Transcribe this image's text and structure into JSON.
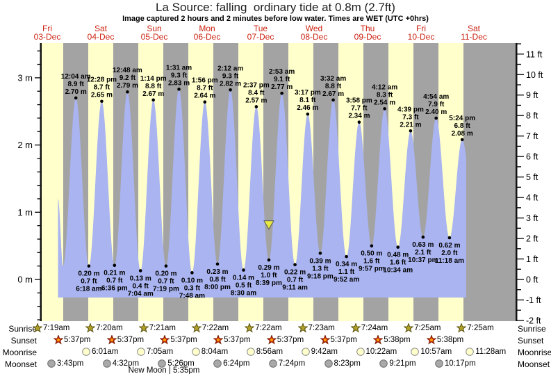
{
  "title": "La Source: falling  ordinary tide at 0.8m (2.7ft)",
  "subtitle": "Image captured 2 hours and 2 minutes before low water. Times are WET (UTC +0hrs)",
  "days": [
    {
      "dow": "Fri",
      "date": "03-Dec"
    },
    {
      "dow": "Sat",
      "date": "04-Dec"
    },
    {
      "dow": "Sun",
      "date": "05-Dec"
    },
    {
      "dow": "Mon",
      "date": "06-Dec"
    },
    {
      "dow": "Tue",
      "date": "07-Dec"
    },
    {
      "dow": "Wed",
      "date": "08-Dec"
    },
    {
      "dow": "Thu",
      "date": "09-Dec"
    },
    {
      "dow": "Fri",
      "date": "10-Dec"
    },
    {
      "dow": "Sat",
      "date": "11-Dec"
    }
  ],
  "chart_data": {
    "type": "area",
    "title": "La Source tide curve",
    "x_categories": [
      "Fri 03-Dec",
      "Sat 04-Dec",
      "Sun 05-Dec",
      "Mon 06-Dec",
      "Tue 07-Dec",
      "Wed 08-Dec",
      "Thu 09-Dec",
      "Fri 10-Dec",
      "Sat 11-Dec"
    ],
    "y_axis_left": {
      "unit": "m",
      "ticks": [
        3,
        2,
        1,
        0
      ],
      "range": [
        -0.62,
        3.52
      ]
    },
    "y_axis_right": {
      "unit": "ft",
      "ticks": [
        11,
        10,
        9,
        8,
        7,
        6,
        5,
        4,
        3,
        2,
        1,
        0,
        -1,
        -2
      ]
    },
    "bands": "yellow = daylight (06:00-18:00), gray = night",
    "grid": false,
    "extremes": [
      {
        "day": 0,
        "kind": "high",
        "time": "12:04 am",
        "ft": "8.9 ft",
        "m": "2.70 m"
      },
      {
        "day": 0,
        "kind": "low",
        "time": "6:18 am",
        "ft": "0.7 ft",
        "m": "0.20 m"
      },
      {
        "day": 0,
        "kind": "high",
        "time": "12:28 pm",
        "ft": "8.7 ft",
        "m": "2.65 m"
      },
      {
        "day": 0,
        "kind": "low",
        "time": "6:36 pm",
        "ft": "0.7 ft",
        "m": "0.21 m"
      },
      {
        "day": 1,
        "kind": "high",
        "time": "12:48 am",
        "ft": "9.2 ft",
        "m": "2.79 m"
      },
      {
        "day": 1,
        "kind": "low",
        "time": "7:04 am",
        "ft": "0.4 ft",
        "m": "0.13 m"
      },
      {
        "day": 1,
        "kind": "high",
        "time": "1:14 pm",
        "ft": "8.8 ft",
        "m": "2.67 m"
      },
      {
        "day": 1,
        "kind": "low",
        "time": "7:19 pm",
        "ft": "0.7 ft",
        "m": "0.20 m"
      },
      {
        "day": 2,
        "kind": "high",
        "time": "1:31 am",
        "ft": "9.3 ft",
        "m": "2.83 m"
      },
      {
        "day": 2,
        "kind": "low",
        "time": "7:48 am",
        "ft": "0.3 ft",
        "m": "0.10 m"
      },
      {
        "day": 2,
        "kind": "high",
        "time": "1:56 pm",
        "ft": "8.7 ft",
        "m": "2.64 m"
      },
      {
        "day": 2,
        "kind": "low",
        "time": "8:00 pm",
        "ft": "0.8 ft",
        "m": "0.23 m"
      },
      {
        "day": 3,
        "kind": "high",
        "time": "2:12 am",
        "ft": "9.3 ft",
        "m": "2.82 m"
      },
      {
        "day": 3,
        "kind": "low",
        "time": "8:30 am",
        "ft": "0.5 ft",
        "m": "0.14 m"
      },
      {
        "day": 3,
        "kind": "high",
        "time": "2:37 pm",
        "ft": "8.4 ft",
        "m": "2.57 m"
      },
      {
        "day": 3,
        "kind": "low",
        "time": "8:39 pm",
        "ft": "1.0 ft",
        "m": "0.29 m"
      },
      {
        "day": 4,
        "kind": "high",
        "time": "2:53 am",
        "ft": "9.1 ft",
        "m": "2.77 m"
      },
      {
        "day": 4,
        "kind": "low",
        "time": "9:11 am",
        "ft": "0.7 ft",
        "m": "0.22 m"
      },
      {
        "day": 4,
        "kind": "high",
        "time": "3:17 pm",
        "ft": "8.1 ft",
        "m": "2.46 m"
      },
      {
        "day": 4,
        "kind": "low",
        "time": "9:18 pm",
        "ft": "1.3 ft",
        "m": "0.39 m"
      },
      {
        "day": 5,
        "kind": "high",
        "time": "3:32 am",
        "ft": "8.8 ft",
        "m": "2.67 m"
      },
      {
        "day": 5,
        "kind": "low",
        "time": "9:52 am",
        "ft": "1.1 ft",
        "m": "0.34 m"
      },
      {
        "day": 5,
        "kind": "high",
        "time": "3:58 pm",
        "ft": "7.7 ft",
        "m": "2.34 m"
      },
      {
        "day": 5,
        "kind": "low",
        "time": "9:57 pm",
        "ft": "1.6 ft",
        "m": "0.50 m"
      },
      {
        "day": 6,
        "kind": "high",
        "time": "4:12 am",
        "ft": "8.3 ft",
        "m": "2.54 m"
      },
      {
        "day": 6,
        "kind": "low",
        "time": "10:34 am",
        "ft": "1.6 ft",
        "m": "0.48 m"
      },
      {
        "day": 6,
        "kind": "high",
        "time": "4:39 pm",
        "ft": "7.3 ft",
        "m": "2.21 m"
      },
      {
        "day": 6,
        "kind": "low",
        "time": "10:37 pm",
        "ft": "2.1 ft",
        "m": "0.63 m"
      },
      {
        "day": 7,
        "kind": "high",
        "time": "4:54 am",
        "ft": "7.9 ft",
        "m": "2.40 m"
      },
      {
        "day": 7,
        "kind": "low",
        "time": "11:18 am",
        "ft": "2.0 ft",
        "m": "0.62 m"
      },
      {
        "day": 7,
        "kind": "high",
        "time": "5:24 pm",
        "ft": "6.8 ft",
        "m": "2.08 m"
      }
    ],
    "current_marker": {
      "shape": "down-triangle",
      "level_m": 0.8,
      "day": 3,
      "near_low_time": "8:39 pm"
    }
  },
  "astro": {
    "rows": [
      {
        "label": "Sunrise",
        "icon": "sunrise-star-icon",
        "times": [
          "7:19am",
          "7:20am",
          "7:21am",
          "7:22am",
          "7:22am",
          "7:23am",
          "7:24am",
          "7:25am",
          "7:25am"
        ]
      },
      {
        "label": "Sunset",
        "icon": "sunset-star-icon",
        "times": [
          "5:37pm",
          "5:37pm",
          "5:37pm",
          "5:37pm",
          "5:37pm",
          "5:37pm",
          "5:38pm",
          "5:38pm"
        ]
      },
      {
        "label": "Moonrise",
        "icon": "moonrise-icon",
        "times": [
          "6:01am",
          "7:05am",
          "8:04am",
          "8:56am",
          "9:42am",
          "10:22am",
          "10:57am",
          "11:28am"
        ]
      },
      {
        "label": "Moonset",
        "icon": "moonset-icon",
        "times": [
          "3:43pm",
          "4:32pm",
          "5:26pm",
          "6:24pm",
          "7:24pm",
          "8:23pm",
          "9:21pm",
          "10:17pm"
        ]
      }
    ],
    "new_moon": "New Moon | 5:35pm"
  },
  "colors": {
    "day_band": "#ffffcc",
    "night_band": "#a3a3a3",
    "tide_fill": "#a9b4f0",
    "date_label": "#cc2211",
    "marker_yellow": "#e8e842",
    "sunrise_star": "#b3a229",
    "sunset_star": "#d32f0f",
    "moonrise_fill": "#ffffcc",
    "moonset_fill": "#a9a9a9"
  }
}
